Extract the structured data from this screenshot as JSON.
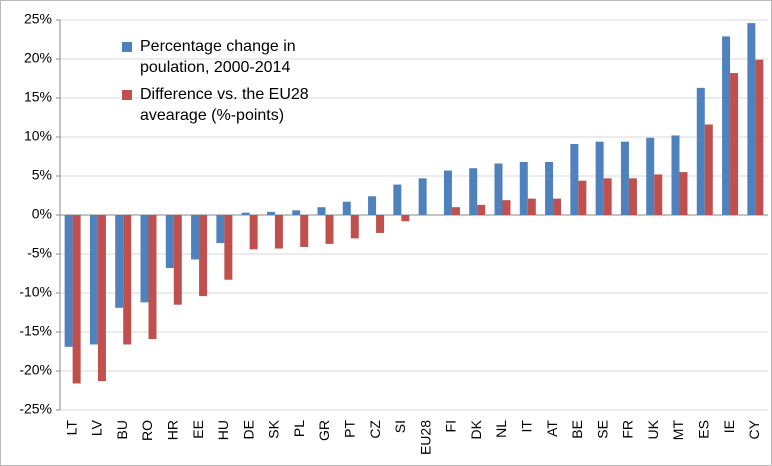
{
  "chart_data": {
    "type": "bar",
    "categories": [
      "LT",
      "LV",
      "BU",
      "RO",
      "HR",
      "EE",
      "HU",
      "DE",
      "SK",
      "PL",
      "GR",
      "PT",
      "CZ",
      "SI",
      "EU28",
      "FI",
      "DK",
      "NL",
      "IT",
      "AT",
      "BE",
      "SE",
      "FR",
      "UK",
      "MT",
      "ES",
      "IE",
      "CY"
    ],
    "series": [
      {
        "name": "Percentage change in poulation, 2000-2014",
        "color": "#4f81bd",
        "values": [
          -16.9,
          -16.6,
          -11.9,
          -11.2,
          -6.8,
          -5.7,
          -3.6,
          0.3,
          0.4,
          0.6,
          1.0,
          1.7,
          2.4,
          3.9,
          4.7,
          5.7,
          6.0,
          6.6,
          6.8,
          6.8,
          9.1,
          9.4,
          9.4,
          9.9,
          10.2,
          16.3,
          22.9,
          24.6
        ]
      },
      {
        "name": "Difference vs. the EU28 avearage (%-points)",
        "color": "#c0504d",
        "values": [
          -21.6,
          -21.3,
          -16.6,
          -15.9,
          -11.5,
          -10.4,
          -8.3,
          -4.4,
          -4.3,
          -4.1,
          -3.7,
          -3.0,
          -2.3,
          -0.8,
          0,
          1.0,
          1.3,
          1.9,
          2.1,
          2.1,
          4.4,
          4.7,
          4.7,
          5.2,
          5.5,
          11.6,
          18.2,
          19.9
        ]
      }
    ],
    "ylim": [
      -25,
      25
    ],
    "yticks": [
      {
        "value": -25,
        "label": "-25%"
      },
      {
        "value": -20,
        "label": "-20%"
      },
      {
        "value": -15,
        "label": "-15%"
      },
      {
        "value": -10,
        "label": "-10%"
      },
      {
        "value": -5,
        "label": "-5%"
      },
      {
        "value": 0,
        "label": "0%"
      },
      {
        "value": 5,
        "label": "5%"
      },
      {
        "value": 10,
        "label": "10%"
      },
      {
        "value": 15,
        "label": "15%"
      },
      {
        "value": 20,
        "label": "20%"
      },
      {
        "value": 25,
        "label": "25%"
      }
    ],
    "grid": true,
    "legend": "upper left"
  }
}
